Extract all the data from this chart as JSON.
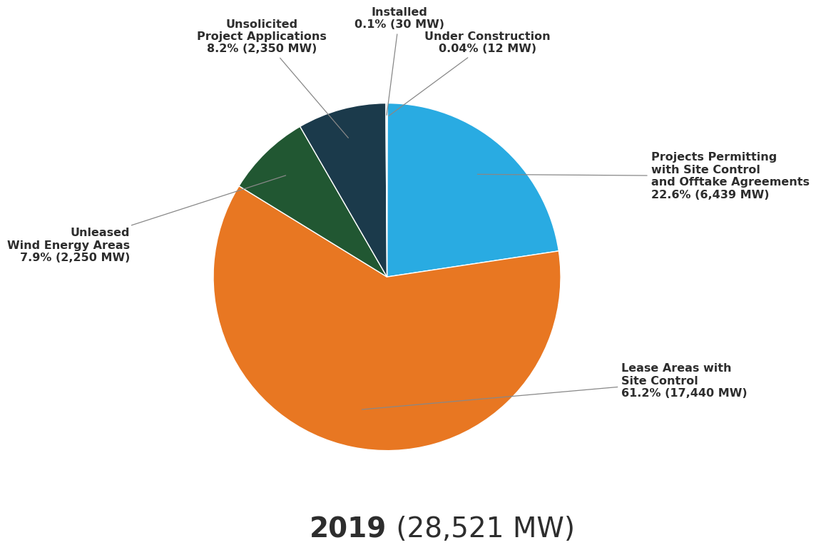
{
  "slices": [
    {
      "label": "Under Construction\n0.04% (12 MW)",
      "value": 12,
      "color": "#29ABE2",
      "pct": 0.04
    },
    {
      "label": "Projects Permitting\nwith Site Control\nand Offtake Agreements\n22.6% (6,439 MW)",
      "value": 6439,
      "color": "#29ABE2",
      "pct": 22.6
    },
    {
      "label": "Lease Areas with\nSite Control\n61.2% (17,440 MW)",
      "value": 17440,
      "color": "#E87722",
      "pct": 61.2
    },
    {
      "label": "Unleased\nWind Energy Areas\n7.9% (2,250 MW)",
      "value": 2250,
      "color": "#215732",
      "pct": 7.9
    },
    {
      "label": "Unsolicited\nProject Applications\n8.2% (2,350 MW)",
      "value": 2350,
      "color": "#1B3A4B",
      "pct": 8.2
    },
    {
      "label": "Installed\n0.1% (30 MW)",
      "value": 30,
      "color": "#1B3A4B",
      "pct": 0.1
    }
  ],
  "total_label_bold": "2019",
  "total_label_rest": " (28,521 MW)",
  "background_color": "#ffffff",
  "label_color": "#2d2d2d",
  "label_fontsize": 11.5,
  "title_fontsize": 28
}
